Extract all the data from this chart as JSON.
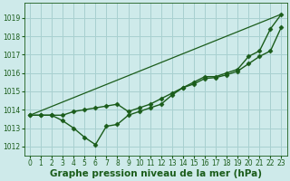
{
  "title": "Graphe pression niveau de la mer (hPa)",
  "background_color": "#ceeaea",
  "grid_color": "#a8d0d0",
  "line_color": "#1a5c1a",
  "x_ticks": [
    0,
    1,
    2,
    3,
    4,
    5,
    6,
    7,
    8,
    9,
    10,
    11,
    12,
    13,
    14,
    15,
    16,
    17,
    18,
    19,
    20,
    21,
    22,
    23
  ],
  "y_ticks": [
    1012,
    1013,
    1014,
    1015,
    1016,
    1017,
    1018,
    1019
  ],
  "ylim": [
    1011.5,
    1019.8
  ],
  "xlim": [
    -0.5,
    23.5
  ],
  "series": [
    {
      "x": [
        0,
        1,
        2,
        3,
        4,
        5,
        6,
        7,
        8,
        9,
        10,
        11,
        12,
        13,
        14,
        15,
        16,
        17,
        18,
        19,
        20,
        21,
        22,
        23
      ],
      "y": [
        1013.7,
        1013.7,
        1013.7,
        1013.4,
        1013.0,
        1012.5,
        1012.1,
        1013.1,
        1013.2,
        1013.7,
        1013.9,
        1014.1,
        1014.3,
        1014.8,
        1015.2,
        1015.5,
        1015.8,
        1015.8,
        1016.0,
        1016.2,
        1016.9,
        1017.2,
        1018.4,
        1019.2
      ],
      "marker": "D",
      "markersize": 2.5,
      "linewidth": 1.0,
      "linestyle": "-"
    },
    {
      "x": [
        0,
        1,
        2,
        3,
        4,
        5,
        6,
        7,
        8,
        9,
        10,
        11,
        12,
        13,
        14,
        15,
        16,
        17,
        18,
        19,
        20,
        21,
        22,
        23
      ],
      "y": [
        1013.7,
        1013.7,
        1013.7,
        1013.7,
        1013.9,
        1014.0,
        1014.1,
        1014.2,
        1014.3,
        1013.9,
        1014.1,
        1014.3,
        1014.6,
        1014.9,
        1015.2,
        1015.4,
        1015.7,
        1015.75,
        1015.9,
        1016.1,
        1016.5,
        1016.9,
        1017.2,
        1018.5
      ],
      "marker": "D",
      "markersize": 2.5,
      "linewidth": 1.0,
      "linestyle": "-"
    },
    {
      "x": [
        0,
        23
      ],
      "y": [
        1013.7,
        1019.2
      ],
      "marker": null,
      "markersize": 0,
      "linewidth": 0.9,
      "linestyle": "-"
    }
  ],
  "title_fontsize": 7.5,
  "tick_fontsize": 5.5,
  "title_color": "#1a5c1a",
  "tick_color": "#1a5c1a",
  "spine_color": "#1a5c1a"
}
